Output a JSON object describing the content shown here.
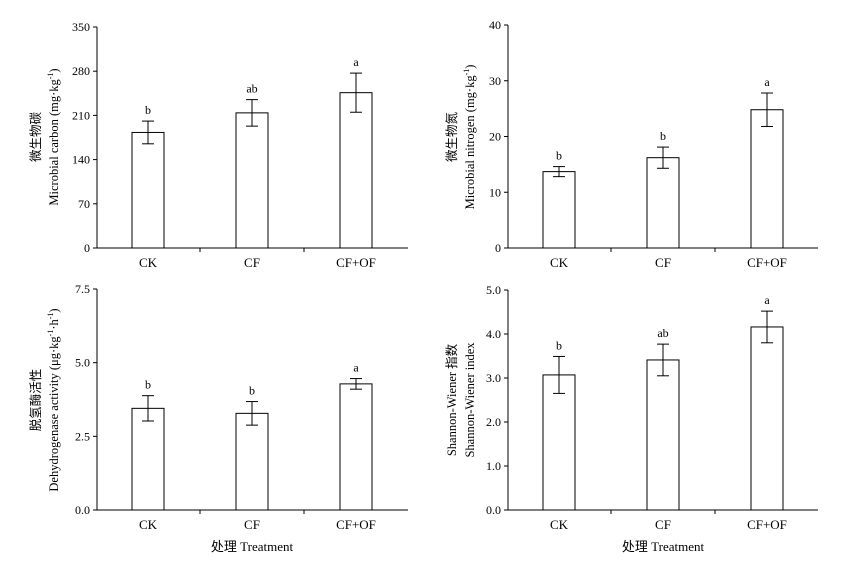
{
  "chart_data": [
    {
      "type": "bar",
      "panel": "top-left",
      "categories": [
        "CK",
        "CF",
        "CF+OF"
      ],
      "values": [
        183,
        214,
        246
      ],
      "errors": [
        18,
        21,
        31
      ],
      "significance": [
        "b",
        "ab",
        "a"
      ],
      "ylabel_cn": "微生物碳",
      "ylabel_en": "Microbial carbon (mg·kg",
      "ylabel_sup": "-1",
      "ylabel_end": ")",
      "xlabel": "",
      "ylim": [
        0,
        350
      ],
      "yticks": [
        "0",
        "70",
        "140",
        "210",
        "280",
        "350"
      ]
    },
    {
      "type": "bar",
      "panel": "top-right",
      "categories": [
        "CK",
        "CF",
        "CF+OF"
      ],
      "values": [
        13.7,
        16.2,
        24.8
      ],
      "errors": [
        0.9,
        1.9,
        3.0
      ],
      "significance": [
        "b",
        "b",
        "a"
      ],
      "ylabel_cn": "微生物氮",
      "ylabel_en": "Microbial nitrogen (mg·kg",
      "ylabel_sup": "-1",
      "ylabel_end": ")",
      "xlabel": "",
      "ylim": [
        0,
        40
      ],
      "yticks": [
        "0",
        "10",
        "20",
        "30",
        "40"
      ]
    },
    {
      "type": "bar",
      "panel": "bottom-left",
      "categories": [
        "CK",
        "CF",
        "CF+OF"
      ],
      "values": [
        3.45,
        3.28,
        4.28
      ],
      "errors": [
        0.43,
        0.4,
        0.18
      ],
      "significance": [
        "b",
        "b",
        "a"
      ],
      "ylabel_cn": "脱氢酶活性",
      "ylabel_en": "Dehydrogenase activity (μg·kg",
      "ylabel_sup": "-1",
      "ylabel_mid": "·h",
      "ylabel_sup2": "-1",
      "ylabel_end": ")",
      "xlabel": "处理 Treatment",
      "ylim": [
        0,
        7.5
      ],
      "yticks": [
        "0.0",
        "2.5",
        "5.0",
        "7.5"
      ]
    },
    {
      "type": "bar",
      "panel": "bottom-right",
      "categories": [
        "CK",
        "CF",
        "CF+OF"
      ],
      "values": [
        3.07,
        3.41,
        4.16
      ],
      "errors": [
        0.42,
        0.36,
        0.36
      ],
      "significance": [
        "b",
        "ab",
        "a"
      ],
      "ylabel_cn": "Shannon-Wiener 指数",
      "ylabel_en": "Shannon-Wiener index",
      "xlabel": "处理 Treatment",
      "ylim": [
        0,
        5
      ],
      "yticks": [
        "0.0",
        "1.0",
        "2.0",
        "3.0",
        "4.0",
        "5.0"
      ]
    }
  ]
}
